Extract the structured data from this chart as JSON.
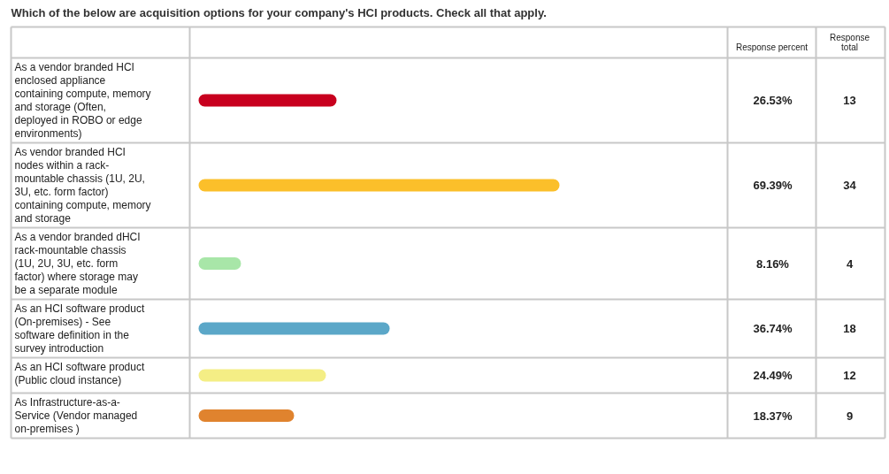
{
  "chart_data": {
    "type": "bar",
    "orientation": "horizontal",
    "title": "Which of the below are acquisition options for your company's HCI products. Check all that apply.",
    "categories": [
      "As a vendor branded HCI enclosed appliance containing compute, memory and storage (Often, deployed in ROBO or edge environments)",
      "As vendor branded HCI nodes within a rack-mountable chassis (1U, 2U, 3U, etc. form factor) containing compute, memory and storage",
      "As a vendor branded dHCI rack-mountable chassis (1U, 2U, 3U, etc. form factor) where storage may be a separate module",
      "As an HCI software product (On-premises) - See software definition in the survey introduction",
      "As an HCI software product (Public cloud instance)",
      "As Infrastructure-as-a-Service (Vendor managed on-premises )"
    ],
    "values": [
      26.53,
      69.39,
      8.16,
      36.74,
      24.49,
      18.37
    ],
    "colors": [
      "#c8001e",
      "#fbbf2a",
      "#a8e6a8",
      "#5ba7c8",
      "#f4ee85",
      "#e0832e"
    ],
    "value_labels": [
      "26.53%",
      "69.39%",
      "8.16%",
      "36.74%",
      "24.49%",
      "18.37%"
    ],
    "xlim": [
      -1.7,
      101.7
    ],
    "tick_labels": false,
    "annotations": [
      "Response percent",
      "Response total",
      "13",
      "34",
      "4",
      "18",
      "12",
      "9"
    ]
  }
}
